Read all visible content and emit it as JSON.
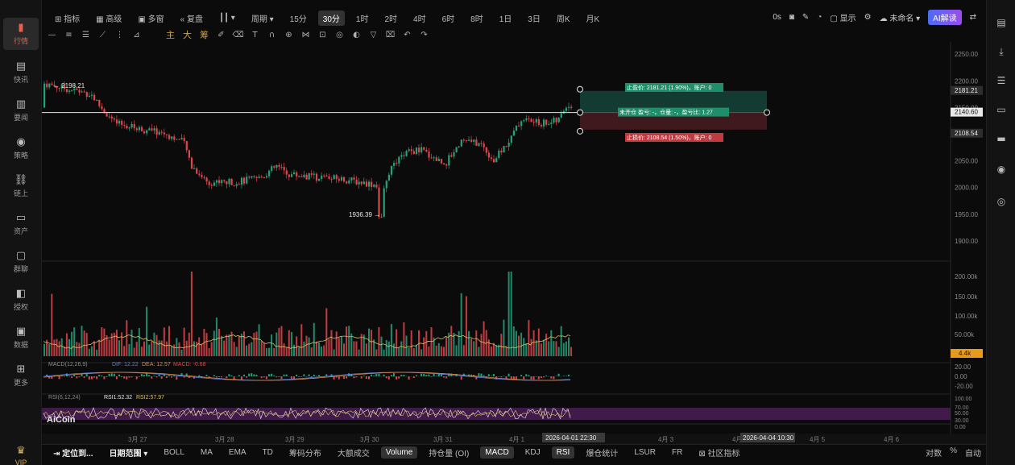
{
  "nav": {
    "items": [
      {
        "label": "行情",
        "icon": "chart-bar-icon",
        "glyph": "▮"
      },
      {
        "label": "快讯",
        "icon": "news-icon",
        "glyph": "▤"
      },
      {
        "label": "要闻",
        "icon": "document-icon",
        "glyph": "▥"
      },
      {
        "label": "策略",
        "icon": "robot-icon",
        "glyph": "◉"
      },
      {
        "label": "链上",
        "icon": "chain-icon",
        "glyph": "⛓"
      },
      {
        "label": "资产",
        "icon": "wallet-icon",
        "glyph": "▭"
      },
      {
        "label": "群聊",
        "icon": "chat-icon",
        "glyph": "▢"
      },
      {
        "label": "授权",
        "icon": "key-icon",
        "glyph": "◧"
      },
      {
        "label": "数据",
        "icon": "monitor-icon",
        "glyph": "▣"
      },
      {
        "label": "更多",
        "icon": "grid-icon",
        "glyph": "⊞"
      }
    ],
    "vip": {
      "label": "VIP",
      "icon": "crown-icon",
      "glyph": "♛"
    }
  },
  "topbar": {
    "indicator": "指标",
    "advanced": "高级",
    "multi": "多窗",
    "replay": "复盘",
    "period": "周期",
    "intervals": [
      "15分",
      "30分",
      "1时",
      "2时",
      "4时",
      "6时",
      "8时",
      "1日",
      "3日",
      "周K",
      "月K"
    ],
    "active_interval": "30分",
    "countdown": "0s",
    "display": "显示",
    "layout_name": "未命名",
    "ai_button": "AI解读"
  },
  "drawbar": {
    "main": "主",
    "big": "大",
    "chip": "筹"
  },
  "chart_data": {
    "type": "candlestick",
    "price_ticks": [
      "2250.00",
      "2200.00",
      "2150.00",
      "2100.00",
      "2050.00",
      "2000.00",
      "1950.00",
      "1900.00"
    ],
    "x_ticks": [
      "3月 27",
      "3月 28",
      "3月 29",
      "3月 30",
      "3月 31",
      "4月 1",
      "4月 3",
      "4月",
      "4月 5",
      "4月 6"
    ],
    "high_label": "2198.21",
    "low_label": "1936.39",
    "current_price": "2140.60",
    "take_profit_price": "2181.21",
    "stop_loss_price": "2108.54",
    "take_profit_text": "止盈价: 2181.21 (1.90%)，账户: 0",
    "stop_loss_text": "止损价: 2108.54 (1.50%)，账户: 0",
    "position_text": "未开仓 盈亏: -，仓量: -，盈亏比: 1.27",
    "volume_ticks": [
      "200.00k",
      "150.00k",
      "100.00k",
      "50.00k"
    ],
    "volume_now": "4.4k",
    "macd_legend": "MACD(12,26,9)",
    "macd_dif": "DIF: 12.22",
    "macd_dea": "DEA: 12.57",
    "macd_val": "MACD: -0.68",
    "macd_ticks": [
      "20.00",
      "0.00",
      "-20.00"
    ],
    "rsi_legend": "RSI(6,12,24)",
    "rsi_1": "RSI1:52.32",
    "rsi_2": "RSI2:57.97",
    "rsi_ticks": [
      "100.00",
      "70.00",
      "50.00",
      "30.00",
      "0.00"
    ],
    "crosshair_time_1": "2026-04-01 22:30",
    "crosshair_time_2": "2026-04-04 10:30",
    "watermark": "AiCoin",
    "colors": {
      "up": "#26a17b",
      "down": "#e0454a",
      "tp": "#1f8f6b",
      "sl": "#c23a3f"
    }
  },
  "bottombar": {
    "locate": "定位到...",
    "range": "日期范围",
    "tabs": [
      "BOLL",
      "MA",
      "EMA",
      "TD",
      "筹码分布",
      "大额成交",
      "Volume",
      "持仓量 (OI)",
      "MACD",
      "KDJ",
      "RSI",
      "爆仓统计",
      "LSUR",
      "FR",
      "社区指标"
    ],
    "active_tabs": [
      "Volume",
      "MACD",
      "RSI"
    ],
    "right": [
      "对数",
      "%",
      "自动"
    ]
  }
}
